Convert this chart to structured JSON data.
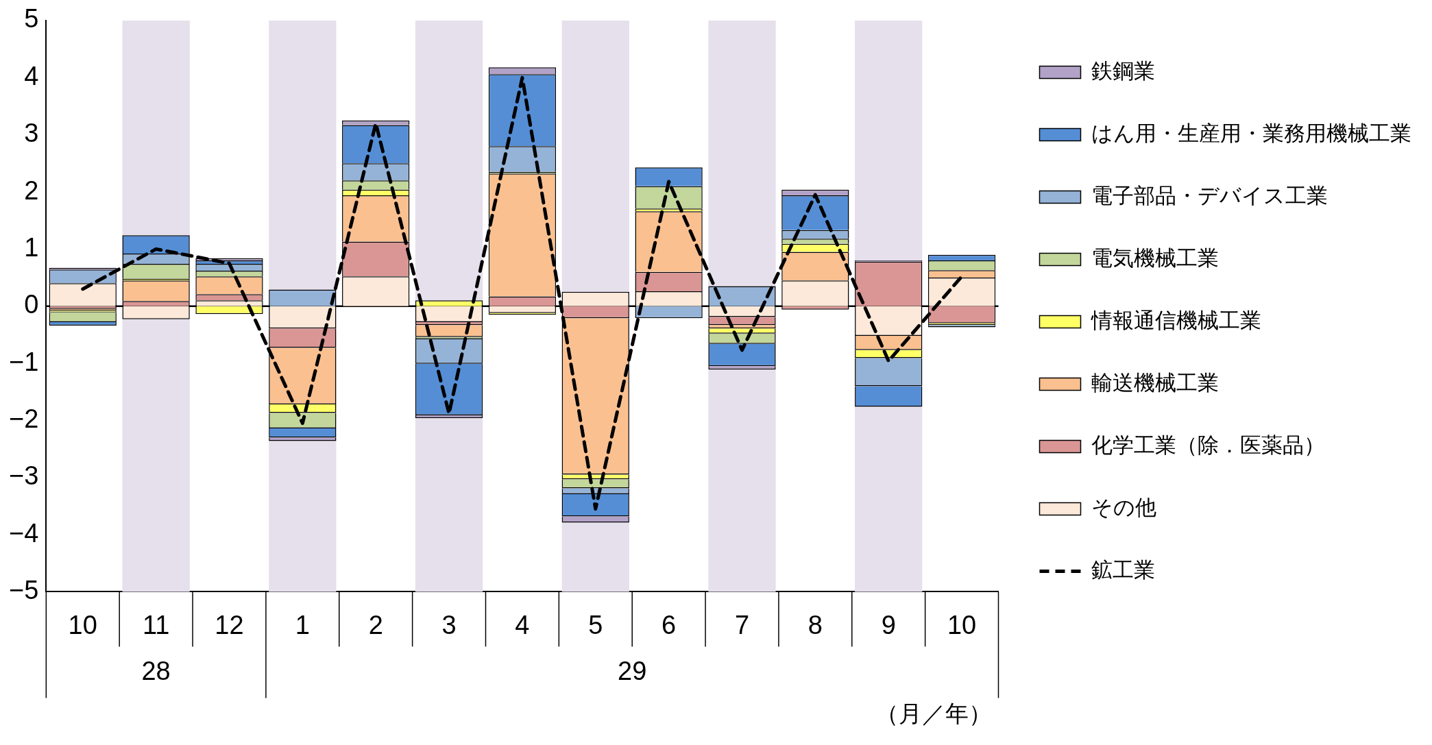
{
  "chart_data": {
    "type": "bar",
    "stacked": true,
    "categories": [
      "10",
      "11",
      "12",
      "1",
      "2",
      "3",
      "4",
      "5",
      "6",
      "7",
      "8",
      "9",
      "10"
    ],
    "series": [
      {
        "name": "その他",
        "color": "#fde9d9",
        "values": [
          0.4,
          -0.23,
          0.1,
          -0.39,
          0.52,
          -0.28,
          -0.12,
          0.25,
          0.26,
          -0.19,
          0.45,
          -0.52,
          0.5
        ]
      },
      {
        "name": "化学工業（除．医薬品）",
        "color": "#d99694",
        "values": [
          -0.05,
          0.09,
          0.11,
          -0.34,
          0.61,
          -0.05,
          0.17,
          -0.21,
          0.34,
          -0.14,
          -0.06,
          0.78,
          -0.3
        ]
      },
      {
        "name": "輸送機械工業",
        "color": "#fac090",
        "values": [
          -0.03,
          0.36,
          0.31,
          -0.99,
          0.81,
          -0.21,
          2.15,
          -2.74,
          1.06,
          -0.06,
          0.5,
          -0.25,
          0.13
        ]
      },
      {
        "name": "情報通信機械工業",
        "color": "#ffff66",
        "values": [
          -0.03,
          0.03,
          -0.14,
          -0.15,
          0.1,
          0.1,
          -0.03,
          -0.08,
          0.05,
          -0.09,
          0.14,
          -0.14,
          -0.03
        ]
      },
      {
        "name": "電気機械工業",
        "color": "#c3d69b",
        "values": [
          -0.17,
          0.26,
          0.1,
          -0.27,
          0.16,
          -0.04,
          0.03,
          -0.16,
          0.39,
          -0.18,
          0.09,
          null,
          0.17
        ]
      },
      {
        "name": "電子部品・デバイス工業",
        "color": "#95b3d7",
        "values": [
          0.24,
          0.18,
          0.12,
          0.29,
          0.3,
          -0.43,
          0.45,
          -0.1,
          -0.21,
          0.35,
          0.15,
          -0.49,
          -0.04
        ]
      },
      {
        "name": "はん用・生産用・業務用機械工業",
        "color": "#558ed5",
        "values": [
          -0.06,
          0.32,
          0.06,
          -0.16,
          0.67,
          -0.9,
          1.26,
          -0.39,
          0.33,
          -0.39,
          0.61,
          -0.36,
          0.1
        ]
      },
      {
        "name": "鉄鋼業",
        "color": "#b3a2c7",
        "values": [
          0.03,
          null,
          0.04,
          -0.06,
          0.08,
          -0.05,
          0.12,
          -0.11,
          null,
          -0.06,
          0.1,
          0.02,
          null
        ]
      },
      {
        "name": "鉱工業",
        "type": "line",
        "color": "#000000",
        "line_style": "dashed",
        "marker": "none",
        "values": [
          0.3,
          1.0,
          0.75,
          -2.05,
          3.2,
          -1.88,
          4.0,
          -3.55,
          2.18,
          -0.77,
          1.95,
          -0.96,
          0.52
        ]
      }
    ],
    "ylim": [
      -5,
      5
    ],
    "yticks": [
      -5,
      -4,
      -3,
      -2,
      -1,
      0,
      1,
      2,
      3,
      4,
      5
    ],
    "grid": false,
    "legend": "right",
    "ref_lines": [
      {
        "axis": "y",
        "value": 0,
        "color": "#000000"
      }
    ],
    "bands": [
      {
        "axis": "x",
        "from": "11",
        "to": "11",
        "color": "#e6e0ec"
      },
      {
        "axis": "x",
        "from": "1",
        "to": "1",
        "color": "#e6e0ec"
      },
      {
        "axis": "x",
        "from": "3",
        "to": "3",
        "color": "#e6e0ec"
      },
      {
        "axis": "x",
        "from": "5",
        "to": "5",
        "color": "#e6e0ec"
      },
      {
        "axis": "x",
        "from": "7",
        "to": "7",
        "color": "#e6e0ec"
      },
      {
        "axis": "x",
        "from": "9",
        "to": "9",
        "color": "#e6e0ec"
      }
    ],
    "annotations": [
      "28",
      "29",
      "（月／年）"
    ]
  }
}
